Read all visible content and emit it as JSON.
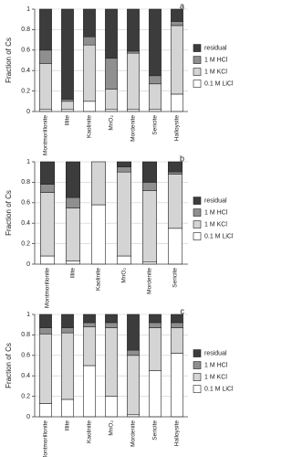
{
  "chart_data": [
    {
      "type": "bar",
      "stacked": true,
      "label": "a",
      "y_label": "Fraction of Cs",
      "grid": true,
      "ylim": [
        0,
        1
      ],
      "yticks": [
        0,
        0.2,
        0.4,
        0.6,
        0.8,
        1
      ],
      "categories": [
        "Montmorillonite",
        "Illite",
        "Kaolinite",
        "MnO₂",
        "Mordenite",
        "Sericite",
        "Halloysite"
      ],
      "series": [
        {
          "name": "0.1 M LiCl",
          "color": "#ffffff",
          "values": [
            0.02,
            0.02,
            0.1,
            0.02,
            0.02,
            0.02,
            0.17
          ]
        },
        {
          "name": "1 M KCl",
          "color": "#d4d4d4",
          "values": [
            0.45,
            0.08,
            0.55,
            0.2,
            0.55,
            0.25,
            0.67
          ]
        },
        {
          "name": "1 M HCl",
          "color": "#8f8f8f",
          "values": [
            0.13,
            0.02,
            0.08,
            0.3,
            0.02,
            0.08,
            0.04
          ]
        },
        {
          "name": "residual",
          "color": "#3c3c3c",
          "values": [
            0.4,
            0.88,
            0.27,
            0.48,
            0.41,
            0.65,
            0.12
          ]
        }
      ]
    },
    {
      "type": "bar",
      "stacked": true,
      "label": "b",
      "y_label": "Fraction of Cs",
      "grid": true,
      "ylim": [
        0,
        1
      ],
      "yticks": [
        0,
        0.2,
        0.4,
        0.6,
        0.8,
        1
      ],
      "categories": [
        "Montmorillonite",
        "Illite",
        "Kaolinite",
        "MnO₂",
        "Mordenite",
        "Sericite"
      ],
      "series": [
        {
          "name": "0.1 M LiCl",
          "color": "#ffffff",
          "values": [
            0.08,
            0.03,
            0.58,
            0.08,
            0.02,
            0.35
          ]
        },
        {
          "name": "1 M KCl",
          "color": "#d4d4d4",
          "values": [
            0.62,
            0.52,
            0.42,
            0.82,
            0.7,
            0.53
          ]
        },
        {
          "name": "1 M HCl",
          "color": "#8f8f8f",
          "values": [
            0.08,
            0.1,
            0,
            0.05,
            0.08,
            0.02
          ]
        },
        {
          "name": "residual",
          "color": "#3c3c3c",
          "values": [
            0.22,
            0.35,
            0,
            0.05,
            0.2,
            0.1
          ]
        }
      ]
    },
    {
      "type": "bar",
      "stacked": true,
      "label": "c",
      "y_label": "Fraction of Cs",
      "grid": true,
      "ylim": [
        0,
        1
      ],
      "yticks": [
        0,
        0.2,
        0.4,
        0.6,
        0.8,
        1
      ],
      "categories": [
        "Montmorillonite",
        "Illite",
        "Kaolinite",
        "MnO₂",
        "Mordenite",
        "Sericite",
        "Halloysite"
      ],
      "series": [
        {
          "name": "0.1 M LiCl",
          "color": "#ffffff",
          "values": [
            0.13,
            0.17,
            0.5,
            0.2,
            0.02,
            0.45,
            0.62
          ]
        },
        {
          "name": "1 M KCl",
          "color": "#d4d4d4",
          "values": [
            0.68,
            0.65,
            0.38,
            0.67,
            0.58,
            0.42,
            0.25
          ]
        },
        {
          "name": "1 M HCl",
          "color": "#8f8f8f",
          "values": [
            0.06,
            0.05,
            0.04,
            0.05,
            0.05,
            0.05,
            0.05
          ]
        },
        {
          "name": "residual",
          "color": "#3c3c3c",
          "values": [
            0.13,
            0.13,
            0.08,
            0.08,
            0.35,
            0.08,
            0.08
          ]
        }
      ]
    }
  ]
}
